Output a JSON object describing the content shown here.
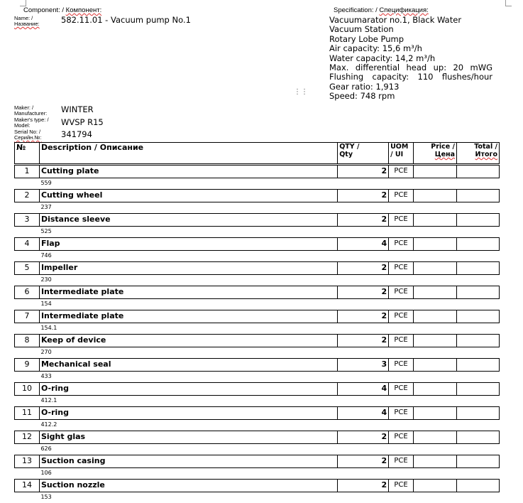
{
  "component": {
    "heading_en": "Component: / ",
    "heading_ru": "Компонент:",
    "name_label_en": "Name: /",
    "name_label_ru": "Название:",
    "name": "582.11.01 - Vacuum pump No.1"
  },
  "specification": {
    "heading_en": "Specification: / ",
    "heading_ru": "Спецификация:",
    "lines": [
      "Vacuumarator no.1, Black Water Vacuum Station",
      "Rotary Lobe Pump",
      "Air capacity: 15,6 m³/h",
      "Water capacity: 14,2 m³/h",
      "Max. differential head up: 20 mWG Flushing capacity: 110 flushes/hour Gear ratio: 1,913",
      "Speed: 748 rpm"
    ]
  },
  "maker": {
    "maker_label1": "Maker: /",
    "maker_label2": "Manufacturer:",
    "maker": "WINTER",
    "type_label1": "Maker's type: /",
    "type_label2": "Model:",
    "type": "WVSP R15",
    "serial_label1": "Serial No: /",
    "serial_label2": "Серийн.№:",
    "serial": "341794"
  },
  "table": {
    "headers": {
      "no": "№",
      "desc": "Description / Описание",
      "qty1": "QTY /",
      "qty2": "Qty",
      "uom1": "UOM",
      "uom2": "/ UI",
      "price1": "Price /",
      "price2": "Цена",
      "total1": "Total /",
      "total2": "Итого"
    },
    "rows": [
      {
        "no": "1",
        "desc": "Cutting plate",
        "code": "559",
        "qty": "2",
        "uom": "PCE"
      },
      {
        "no": "2",
        "desc": "Cutting wheel",
        "code": "237",
        "qty": "2",
        "uom": "PCE"
      },
      {
        "no": "3",
        "desc": "Distance sleeve",
        "code": "525",
        "qty": "2",
        "uom": "PCE"
      },
      {
        "no": "4",
        "desc": "Flap",
        "code": "746",
        "qty": "4",
        "uom": "PCE"
      },
      {
        "no": "5",
        "desc": "Impeller",
        "code": "230",
        "qty": "2",
        "uom": "PCE"
      },
      {
        "no": "6",
        "desc": "Intermediate plate",
        "code": "154",
        "qty": "2",
        "uom": "PCE"
      },
      {
        "no": "7",
        "desc": "Intermediate plate",
        "code": "154.1",
        "qty": "2",
        "uom": "PCE"
      },
      {
        "no": "8",
        "desc": "Keep of device",
        "code": "270",
        "qty": "2",
        "uom": "PCE"
      },
      {
        "no": "9",
        "desc": "Mechanical seal",
        "code": "433",
        "qty": "3",
        "uom": "PCE"
      },
      {
        "no": "10",
        "desc": "O-ring",
        "code": "412.1",
        "qty": "4",
        "uom": "PCE"
      },
      {
        "no": "11",
        "desc": "O-ring",
        "code": "412.2",
        "qty": "4",
        "uom": "PCE"
      },
      {
        "no": "12",
        "desc": "Sight glas",
        "code": "626",
        "qty": "2",
        "uom": "PCE"
      },
      {
        "no": "13",
        "desc": "Suction casing",
        "code": "106",
        "qty": "2",
        "uom": "PCE"
      },
      {
        "no": "14",
        "desc": "Suction nozzle",
        "code": "153",
        "qty": "2",
        "uom": "PCE"
      }
    ]
  }
}
